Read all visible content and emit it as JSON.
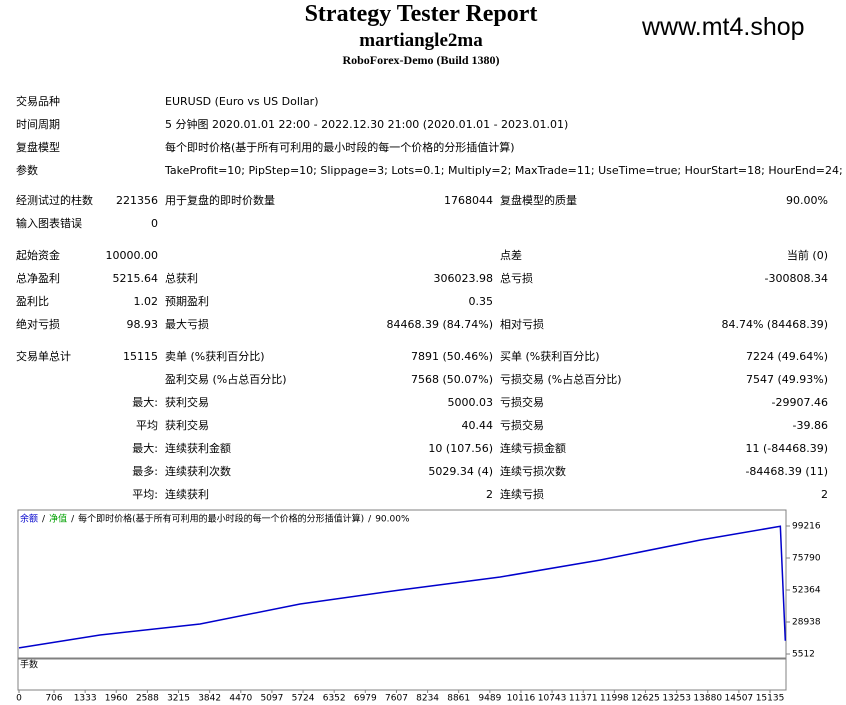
{
  "header": {
    "title": "Strategy Tester Report",
    "ea": "martiangle2ma",
    "broker": "RoboForex-Demo (Build 1380)",
    "watermark": "www.mt4.shop"
  },
  "settings": {
    "rows": [
      [
        "交易品种",
        "EURUSD (Euro vs US Dollar)"
      ],
      [
        "时间周期",
        "5 分钟图 2020.01.01 22:00 - 2022.12.30 21:00 (2020.01.01 - 2023.01.01)"
      ],
      [
        "复盘模型",
        "每个即时价格(基于所有可利用的最小时段的每一个价格的分形插值计算)"
      ],
      [
        "参数",
        "TakeProfit=10; PipStep=10; Slippage=3; Lots=0.1; Multiply=2; MaxTrade=11; UseTime=true; HourStart=18; HourEnd=24;"
      ]
    ]
  },
  "stats": {
    "rows": [
      {
        "label1": "经测试过的柱数",
        "value1": "221356",
        "label2": "用于复盘的即时价数量",
        "value2": "1768044",
        "label3": "复盘模型的质量",
        "value3": "90.00%"
      },
      {
        "label1": "输入图表错误",
        "value1": "0"
      },
      {
        "label1": "起始资金",
        "value1": "10000.00",
        "label3": "点差",
        "value3": "当前 (0)"
      },
      {
        "label1": "总净盈利",
        "value1": "5215.64",
        "label2": "总获利",
        "value2": "306023.98",
        "label3": "总亏损",
        "value3": "-300808.34"
      },
      {
        "label1": "盈利比",
        "value1": "1.02",
        "label2": "预期盈利",
        "value2": "0.35"
      },
      {
        "label1": "绝对亏损",
        "value1": "98.93",
        "label2": "最大亏损",
        "value2": "84468.39 (84.74%)",
        "label3": "相对亏损",
        "value3": "84.74% (84468.39)"
      },
      {
        "label1": "交易单总计",
        "value1": "15115",
        "label2": "卖单 (%获利百分比)",
        "value2": "7891 (50.46%)",
        "label3": "买单 (%获利百分比)",
        "value3": "7224 (49.64%)"
      },
      {
        "label2": "盈利交易 (%占总百分比)",
        "value2": "7568 (50.07%)",
        "label3": "亏损交易 (%占总百分比)",
        "value3": "7547 (49.93%)"
      },
      {
        "value1": "最大:",
        "label2": "获利交易",
        "value2": "5000.03",
        "label3": "亏损交易",
        "value3": "-29907.46"
      },
      {
        "value1": "平均",
        "label2": "获利交易",
        "value2": "40.44",
        "label3": "亏损交易",
        "value3": "-39.86"
      },
      {
        "value1": "最大:",
        "label2": "连续获利金额",
        "value2": "10 (107.56)",
        "label3": "连续亏损金额",
        "value3": "11 (-84468.39)"
      },
      {
        "value1": "最多:",
        "label2": "连续获利次数",
        "value2": "5029.34 (4)",
        "label3": "连续亏损次数",
        "value3": "-84468.39 (11)"
      },
      {
        "value1": "平均:",
        "label2": "连续获利",
        "value2": "2",
        "label3": "连续亏损",
        "value3": "2"
      }
    ]
  },
  "chart_data": {
    "type": "line",
    "legend_separator": "/",
    "model": "每个即时价格(基于所有可利用的最小时段的每一个价格的分形插值计算)",
    "quality": "90.00%",
    "volume_label": "手数",
    "x": [
      0,
      1633,
      3649,
      5665,
      7681,
      9698,
      11714,
      13730,
      15343,
      15443
    ],
    "series": [
      {
        "name": "余额",
        "color": "#0000cc",
        "values": [
          10000,
          19421,
          27474,
          42115,
          52364,
          61881,
          74326,
          88967,
          99000,
          15216
        ]
      },
      {
        "name": "净值",
        "color": "#00a000",
        "values": [
          null,
          null,
          null,
          null,
          null,
          null,
          null,
          null,
          null,
          null
        ]
      }
    ],
    "xlim": [
      0,
      15457
    ],
    "xticks": [
      0,
      706,
      1333,
      1960,
      2588,
      3215,
      3842,
      4470,
      5097,
      5724,
      6352,
      6979,
      7607,
      8234,
      8861,
      9489,
      10116,
      10743,
      11371,
      11998,
      12625,
      13253,
      13880,
      14507,
      15135
    ],
    "ylim": [
      2584,
      108733
    ],
    "yticks": [
      5512,
      28938,
      52364,
      75790,
      99216
    ]
  }
}
